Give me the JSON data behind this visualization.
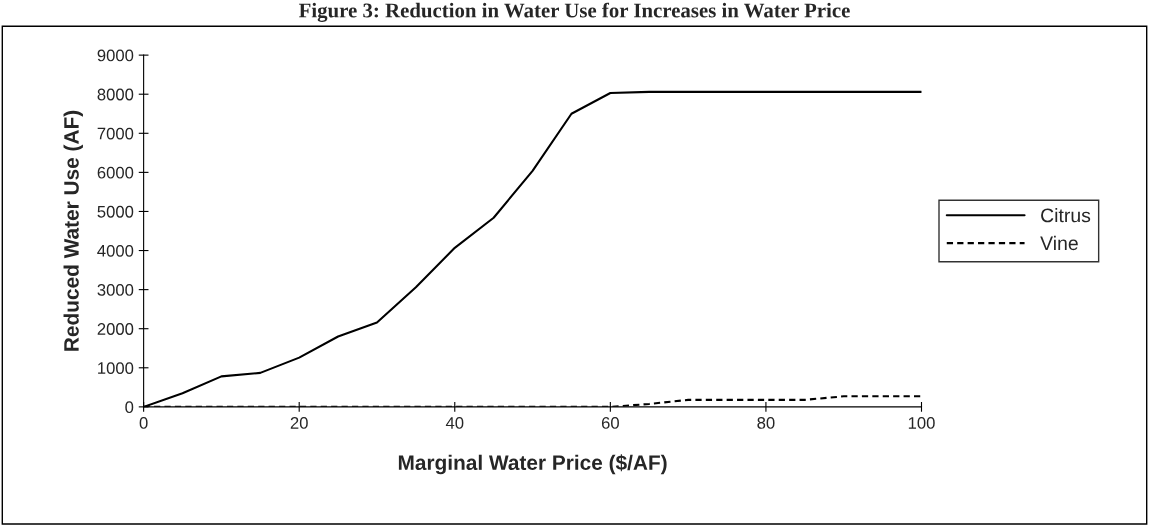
{
  "chart_data": {
    "type": "line",
    "title": "Figure 3: Reduction in Water Use for Increases in Water Price",
    "xlabel": "Marginal Water Price ($/AF)",
    "ylabel": "Reduced Water Use (AF)",
    "x": [
      0,
      5,
      10,
      15,
      20,
      25,
      30,
      35,
      40,
      45,
      50,
      55,
      60,
      65,
      70,
      75,
      80,
      85,
      90,
      95,
      100
    ],
    "series": [
      {
        "name": "Citrus",
        "color": "#000000",
        "line_style": "solid",
        "values": [
          0,
          350,
          780,
          870,
          1260,
          1800,
          2160,
          3060,
          4070,
          4840,
          6040,
          7500,
          8030,
          8060,
          8060,
          8060,
          8060,
          8060,
          8060,
          8060,
          8060
        ]
      },
      {
        "name": "Vine",
        "color": "#000000",
        "line_style": "dotted",
        "values": [
          0,
          0,
          0,
          0,
          0,
          0,
          0,
          0,
          0,
          0,
          0,
          0,
          0,
          75,
          180,
          180,
          180,
          180,
          270,
          270,
          270
        ]
      }
    ],
    "xlim": [
      0,
      100
    ],
    "xticks": [
      0,
      20,
      40,
      60,
      80,
      100
    ],
    "ylim": [
      0,
      9000
    ],
    "yticks": [
      0,
      1000,
      2000,
      3000,
      4000,
      5000,
      6000,
      7000,
      8000,
      9000
    ],
    "grid": false,
    "legend": "right",
    "marker": "none"
  }
}
